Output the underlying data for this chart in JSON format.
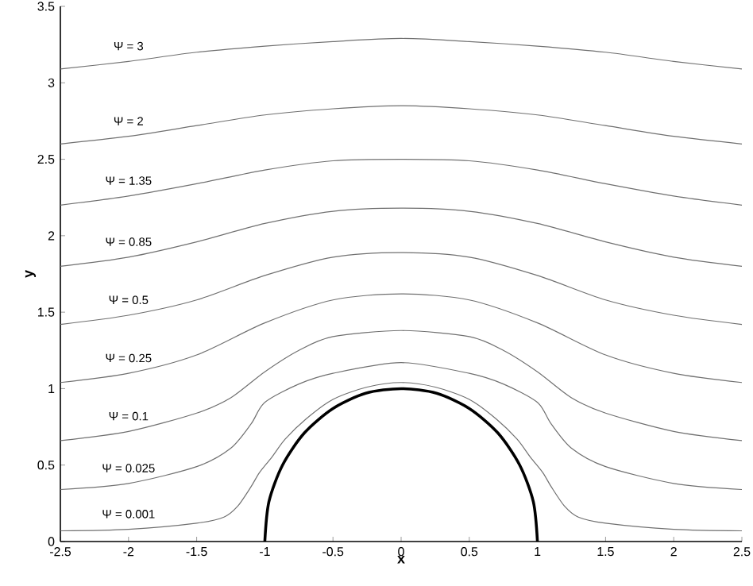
{
  "chart_data": {
    "type": "line",
    "xlabel": "x",
    "ylabel": "y",
    "xlim": [
      -2.5,
      2.5
    ],
    "ylim": [
      0,
      3.5
    ],
    "xticks": [
      -2.5,
      -2,
      -1.5,
      -1,
      -0.5,
      0,
      0.5,
      1,
      1.5,
      2,
      2.5
    ],
    "yticks": [
      0,
      0.5,
      1,
      1.5,
      2,
      2.5,
      3,
      3.5
    ],
    "series": [
      {
        "name": "Ψ = 3",
        "color": "#707070",
        "x": [
          -2.5,
          -2,
          -1.5,
          -1,
          -0.5,
          0,
          0.5,
          1,
          1.5,
          2,
          2.5
        ],
        "values": [
          3.09,
          3.14,
          3.2,
          3.24,
          3.27,
          3.29,
          3.27,
          3.24,
          3.2,
          3.14,
          3.09
        ]
      },
      {
        "name": "Ψ = 2",
        "color": "#707070",
        "x": [
          -2.5,
          -2,
          -1.5,
          -1,
          -0.5,
          0,
          0.5,
          1,
          1.5,
          2,
          2.5
        ],
        "values": [
          2.6,
          2.65,
          2.72,
          2.79,
          2.83,
          2.85,
          2.83,
          2.79,
          2.72,
          2.65,
          2.6
        ]
      },
      {
        "name": "Ψ = 1.35",
        "color": "#707070",
        "x": [
          -2.5,
          -2,
          -1.5,
          -1,
          -0.5,
          0,
          0.5,
          1,
          1.5,
          2,
          2.5
        ],
        "values": [
          2.2,
          2.26,
          2.34,
          2.43,
          2.49,
          2.5,
          2.49,
          2.43,
          2.34,
          2.26,
          2.2
        ]
      },
      {
        "name": "Ψ = 0.85",
        "color": "#707070",
        "x": [
          -2.5,
          -2,
          -1.5,
          -1,
          -0.5,
          0,
          0.5,
          1,
          1.5,
          2,
          2.5
        ],
        "values": [
          1.8,
          1.86,
          1.96,
          2.08,
          2.16,
          2.18,
          2.16,
          2.08,
          1.96,
          1.86,
          1.8
        ]
      },
      {
        "name": "Ψ = 0.5",
        "color": "#707070",
        "x": [
          -2.5,
          -2,
          -1.5,
          -1,
          -0.5,
          0,
          0.5,
          1,
          1.5,
          2,
          2.5
        ],
        "values": [
          1.42,
          1.48,
          1.58,
          1.74,
          1.86,
          1.89,
          1.86,
          1.74,
          1.58,
          1.48,
          1.42
        ]
      },
      {
        "name": "Ψ = 0.25",
        "color": "#707070",
        "x": [
          -2.5,
          -2,
          -1.5,
          -1,
          -0.5,
          0,
          0.5,
          1,
          1.5,
          2,
          2.5
        ],
        "values": [
          1.04,
          1.1,
          1.22,
          1.43,
          1.58,
          1.62,
          1.58,
          1.43,
          1.22,
          1.1,
          1.04
        ]
      },
      {
        "name": "Ψ = 0.1",
        "color": "#707070",
        "x": [
          -2.5,
          -2,
          -1.5,
          -1.25,
          -1,
          -0.75,
          -0.5,
          0,
          0.5,
          0.75,
          1,
          1.25,
          1.5,
          2,
          2.5
        ],
        "values": [
          0.66,
          0.72,
          0.84,
          0.94,
          1.11,
          1.25,
          1.34,
          1.38,
          1.34,
          1.25,
          1.11,
          0.94,
          0.84,
          0.72,
          0.66
        ]
      },
      {
        "name": "Ψ = 0.025",
        "color": "#707070",
        "x": [
          -2.5,
          -2,
          -1.5,
          -1.25,
          -1.1,
          -1,
          -0.75,
          -0.5,
          0,
          0.5,
          0.75,
          1,
          1.1,
          1.25,
          1.5,
          2,
          2.5
        ],
        "values": [
          0.34,
          0.38,
          0.49,
          0.61,
          0.77,
          0.91,
          1.03,
          1.1,
          1.17,
          1.1,
          1.03,
          0.91,
          0.77,
          0.61,
          0.49,
          0.38,
          0.34
        ]
      },
      {
        "name": "Ψ = 0.001",
        "color": "#707070",
        "x": [
          -2.5,
          -2,
          -1.5,
          -1.3,
          -1.2,
          -1.1,
          -1.04,
          -0.95,
          -0.85,
          -0.7,
          -0.5,
          -0.25,
          0,
          0.25,
          0.5,
          0.7,
          0.85,
          0.95,
          1.04,
          1.1,
          1.2,
          1.3,
          1.5,
          2,
          2.5
        ],
        "values": [
          0.07,
          0.08,
          0.12,
          0.16,
          0.23,
          0.36,
          0.45,
          0.55,
          0.67,
          0.8,
          0.93,
          1.01,
          1.04,
          1.01,
          0.93,
          0.8,
          0.67,
          0.55,
          0.45,
          0.36,
          0.23,
          0.16,
          0.12,
          0.08,
          0.07
        ]
      },
      {
        "color": "#000000",
        "x": [
          -1,
          -0.97,
          -0.87,
          -0.71,
          -0.5,
          -0.26,
          0,
          0.26,
          0.5,
          0.71,
          0.87,
          0.97,
          1
        ],
        "values": [
          0,
          0.26,
          0.5,
          0.71,
          0.87,
          0.97,
          1,
          0.97,
          0.87,
          0.71,
          0.5,
          0.26,
          0
        ]
      }
    ]
  }
}
